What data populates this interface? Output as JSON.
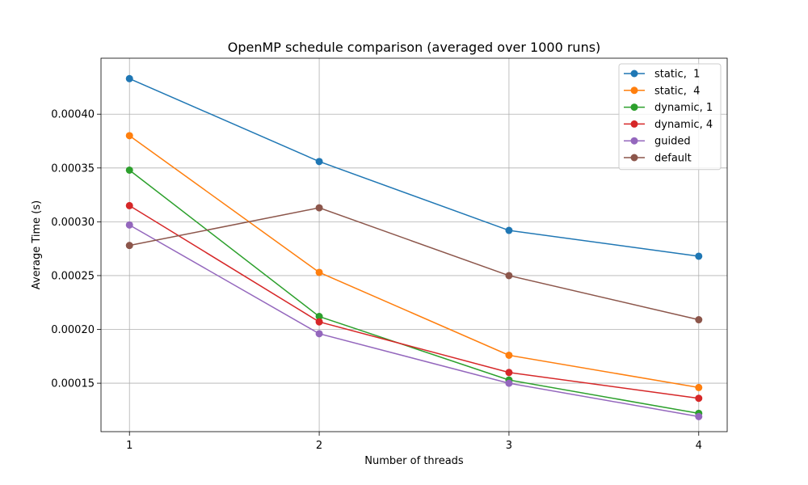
{
  "chart_data": {
    "type": "line",
    "title": "OpenMP schedule comparison (averaged over 1000 runs)",
    "xlabel": "Number of threads",
    "ylabel": "Average Time (s)",
    "x": [
      1,
      2,
      3,
      4
    ],
    "xticks": [
      "1",
      "2",
      "3",
      "4"
    ],
    "xlim": [
      0.85,
      4.15
    ],
    "yticks": [
      "0.00015",
      "0.00020",
      "0.00025",
      "0.00030",
      "0.00035",
      "0.00040"
    ],
    "ytick_values": [
      0.00015,
      0.0002,
      0.00025,
      0.0003,
      0.00035,
      0.0004
    ],
    "ylim": [
      0.000105,
      0.000452
    ],
    "grid": true,
    "legend_position": "top-right",
    "series": [
      {
        "name": "static,  1",
        "color": "#1f77b4",
        "values": [
          0.000433,
          0.000356,
          0.000292,
          0.000268
        ]
      },
      {
        "name": "static,  4",
        "color": "#ff7f0e",
        "values": [
          0.00038,
          0.000253,
          0.000176,
          0.000146
        ]
      },
      {
        "name": "dynamic, 1",
        "color": "#2ca02c",
        "values": [
          0.000348,
          0.000212,
          0.000153,
          0.000122
        ]
      },
      {
        "name": "dynamic, 4",
        "color": "#d62728",
        "values": [
          0.000315,
          0.000207,
          0.00016,
          0.000136
        ]
      },
      {
        "name": "guided",
        "color": "#9467bd",
        "values": [
          0.000297,
          0.000196,
          0.00015,
          0.000119
        ]
      },
      {
        "name": "default",
        "color": "#8c564b",
        "values": [
          0.000278,
          0.000313,
          0.00025,
          0.000209
        ]
      }
    ]
  }
}
